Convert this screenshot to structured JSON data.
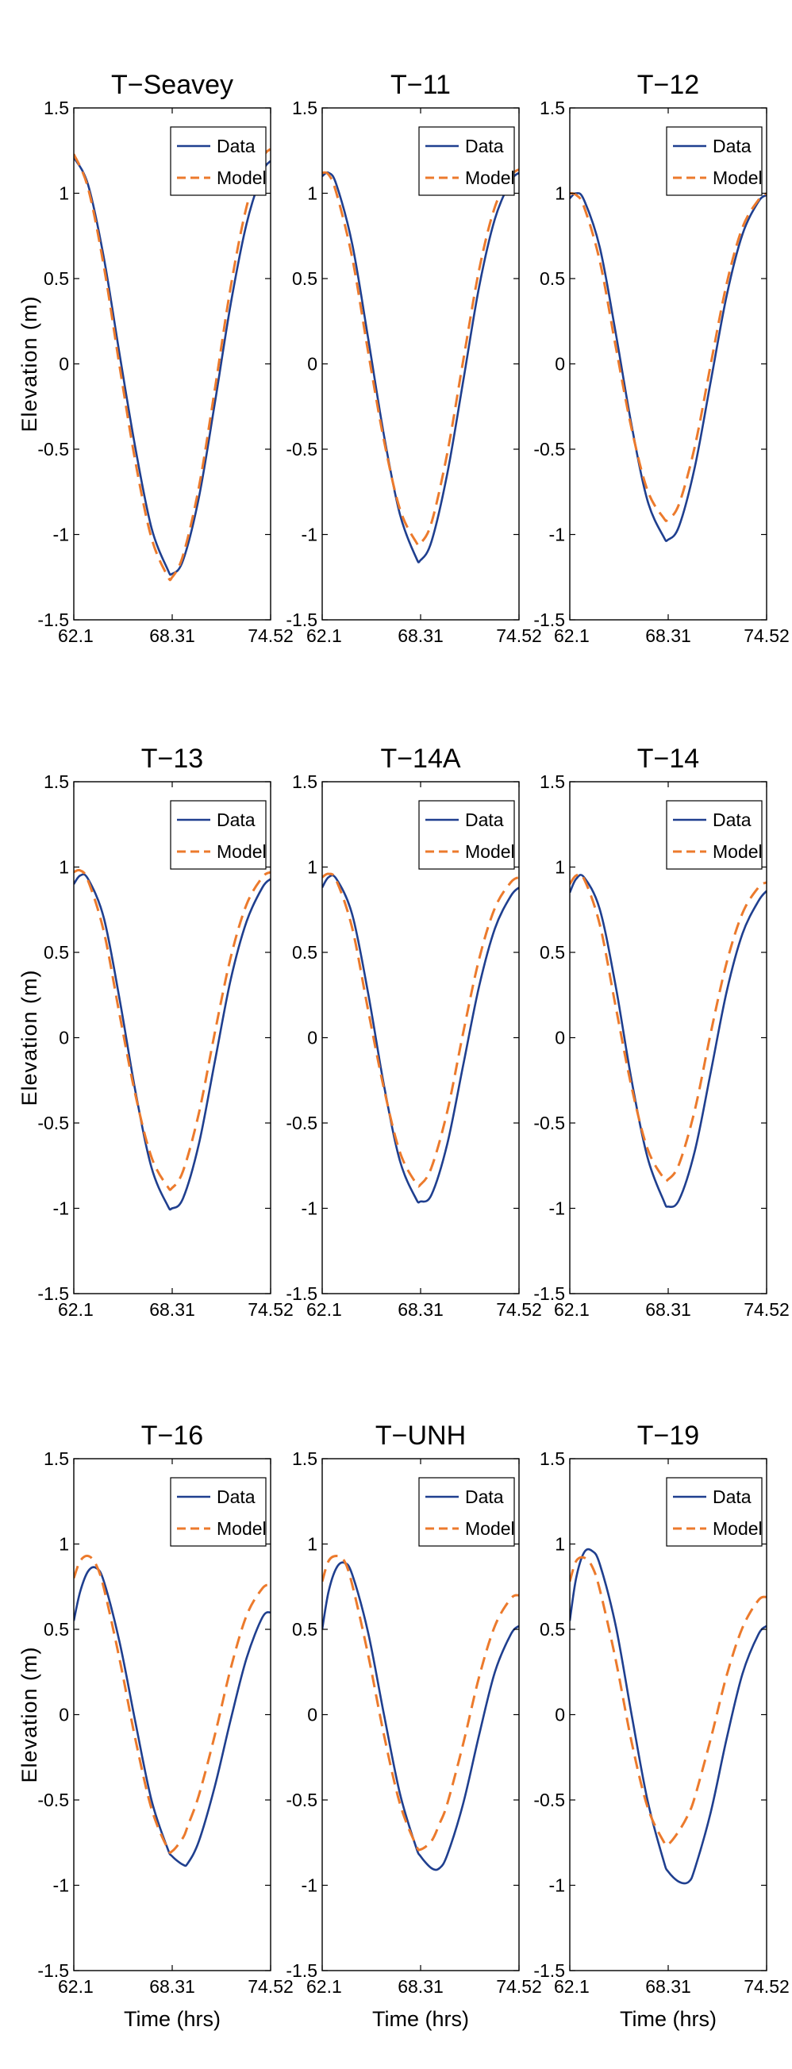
{
  "figure": {
    "ylabel": "Elevation  (m)",
    "xlabel": "Time (hrs)",
    "colors": {
      "data": "#1f3f8f",
      "model": "#ec7a2c",
      "axis": "#000000"
    }
  },
  "chart_data": [
    {
      "type": "line",
      "title": "T−Seavey",
      "xlim": [
        62.1,
        74.52
      ],
      "ylim": [
        -1.5,
        1.5
      ],
      "xticks": [
        "62.1",
        "68.31",
        "74.52"
      ],
      "yticks": [
        "-1.5",
        "-1",
        "-0.5",
        "0",
        "0.5",
        "1",
        "1.5"
      ],
      "legend_position": "top-right",
      "x": [
        62.1,
        63.0,
        64.0,
        65.0,
        66.0,
        67.0,
        68.0,
        68.31,
        69.0,
        70.0,
        71.0,
        72.0,
        73.0,
        74.0,
        74.52
      ],
      "series": [
        {
          "name": "Data",
          "dash": "solid",
          "values": [
            1.21,
            1.05,
            0.62,
            0.05,
            -0.5,
            -0.96,
            -1.2,
            -1.23,
            -1.15,
            -0.78,
            -0.23,
            0.35,
            0.82,
            1.12,
            1.19
          ]
        },
        {
          "name": "Model",
          "dash": "dashed",
          "values": [
            1.23,
            1.03,
            0.57,
            -0.02,
            -0.58,
            -1.02,
            -1.24,
            -1.25,
            -1.12,
            -0.72,
            -0.15,
            0.45,
            0.92,
            1.2,
            1.26
          ]
        }
      ]
    },
    {
      "type": "line",
      "title": "T−11",
      "xlim": [
        62.1,
        74.52
      ],
      "ylim": [
        -1.5,
        1.5
      ],
      "xticks": [
        "62.1",
        "68.31",
        "74.52"
      ],
      "yticks": [
        "-1.5",
        "-1",
        "-0.5",
        "0",
        "0.5",
        "1",
        "1.5"
      ],
      "legend_position": "top-right",
      "x": [
        62.1,
        62.5,
        63.0,
        64.0,
        65.0,
        66.0,
        67.0,
        68.0,
        68.31,
        69.0,
        70.0,
        71.0,
        72.0,
        73.0,
        74.0,
        74.52
      ],
      "series": [
        {
          "name": "Data",
          "dash": "solid",
          "values": [
            1.1,
            1.12,
            1.05,
            0.7,
            0.15,
            -0.42,
            -0.88,
            -1.13,
            -1.15,
            -1.04,
            -0.64,
            -0.1,
            0.45,
            0.85,
            1.07,
            1.12
          ]
        },
        {
          "name": "Model",
          "dash": "dashed",
          "values": [
            1.12,
            1.11,
            1.0,
            0.62,
            0.07,
            -0.45,
            -0.85,
            -1.04,
            -1.05,
            -0.93,
            -0.52,
            0.02,
            0.55,
            0.92,
            1.1,
            1.14
          ]
        }
      ]
    },
    {
      "type": "line",
      "title": "T−12",
      "xlim": [
        62.1,
        74.52
      ],
      "ylim": [
        -1.5,
        1.5
      ],
      "xticks": [
        "62.1",
        "68.31",
        "74.52"
      ],
      "yticks": [
        "-1.5",
        "-1",
        "-0.5",
        "0",
        "0.5",
        "1",
        "1.5"
      ],
      "legend_position": "top-right",
      "x": [
        62.1,
        62.5,
        63.0,
        64.0,
        65.0,
        66.0,
        67.0,
        68.0,
        68.31,
        69.0,
        70.0,
        71.0,
        72.0,
        73.0,
        74.0,
        74.52
      ],
      "series": [
        {
          "name": "Data",
          "dash": "solid",
          "values": [
            0.97,
            1.0,
            0.96,
            0.68,
            0.18,
            -0.36,
            -0.8,
            -1.01,
            -1.03,
            -0.95,
            -0.6,
            -0.1,
            0.4,
            0.76,
            0.95,
            0.99
          ]
        },
        {
          "name": "Model",
          "dash": "dashed",
          "values": [
            1.0,
            0.99,
            0.92,
            0.6,
            0.1,
            -0.38,
            -0.74,
            -0.9,
            -0.91,
            -0.82,
            -0.48,
            0.0,
            0.47,
            0.8,
            0.96,
            1.0
          ]
        }
      ]
    },
    {
      "type": "line",
      "title": "T−13",
      "xlim": [
        62.1,
        74.52
      ],
      "ylim": [
        -1.5,
        1.5
      ],
      "xticks": [
        "62.1",
        "68.31",
        "74.52"
      ],
      "yticks": [
        "-1.5",
        "-1",
        "-0.5",
        "0",
        "0.5",
        "1",
        "1.5"
      ],
      "legend_position": "top-right",
      "x": [
        62.1,
        62.5,
        63.0,
        64.0,
        65.0,
        66.0,
        67.0,
        68.0,
        68.31,
        69.0,
        70.0,
        71.0,
        72.0,
        73.0,
        74.0,
        74.52
      ],
      "series": [
        {
          "name": "Data",
          "dash": "solid",
          "values": [
            0.9,
            0.95,
            0.93,
            0.7,
            0.22,
            -0.32,
            -0.76,
            -0.98,
            -1.0,
            -0.94,
            -0.62,
            -0.14,
            0.34,
            0.68,
            0.88,
            0.93
          ]
        },
        {
          "name": "Model",
          "dash": "dashed",
          "values": [
            0.97,
            0.98,
            0.92,
            0.62,
            0.13,
            -0.34,
            -0.7,
            -0.87,
            -0.88,
            -0.78,
            -0.44,
            0.03,
            0.47,
            0.78,
            0.94,
            0.97
          ]
        }
      ]
    },
    {
      "type": "line",
      "title": "T−14A",
      "xlim": [
        62.1,
        74.52
      ],
      "ylim": [
        -1.5,
        1.5
      ],
      "xticks": [
        "62.1",
        "68.31",
        "74.52"
      ],
      "yticks": [
        "-1.5",
        "-1",
        "-0.5",
        "0",
        "0.5",
        "1",
        "1.5"
      ],
      "legend_position": "top-right",
      "x": [
        62.1,
        62.5,
        63.0,
        64.0,
        65.0,
        66.0,
        67.0,
        68.0,
        68.31,
        69.0,
        70.0,
        71.0,
        72.0,
        73.0,
        74.0,
        74.52
      ],
      "series": [
        {
          "name": "Data",
          "dash": "solid",
          "values": [
            0.88,
            0.94,
            0.93,
            0.72,
            0.26,
            -0.28,
            -0.72,
            -0.94,
            -0.96,
            -0.92,
            -0.62,
            -0.16,
            0.3,
            0.64,
            0.83,
            0.88
          ]
        },
        {
          "name": "Model",
          "dash": "dashed",
          "values": [
            0.94,
            0.96,
            0.92,
            0.64,
            0.16,
            -0.3,
            -0.67,
            -0.85,
            -0.86,
            -0.76,
            -0.43,
            0.03,
            0.46,
            0.76,
            0.91,
            0.94
          ]
        }
      ]
    },
    {
      "type": "line",
      "title": "T−14",
      "xlim": [
        62.1,
        74.52
      ],
      "ylim": [
        -1.5,
        1.5
      ],
      "xticks": [
        "62.1",
        "68.31",
        "74.52"
      ],
      "yticks": [
        "-1.5",
        "-1",
        "-0.5",
        "0",
        "0.5",
        "1",
        "1.5"
      ],
      "legend_position": "top-right",
      "x": [
        62.1,
        62.5,
        63.0,
        64.0,
        65.0,
        66.0,
        67.0,
        68.0,
        68.31,
        69.0,
        70.0,
        71.0,
        72.0,
        73.0,
        74.0,
        74.52
      ],
      "series": [
        {
          "name": "Data",
          "dash": "solid",
          "values": [
            0.85,
            0.93,
            0.94,
            0.75,
            0.3,
            -0.25,
            -0.7,
            -0.95,
            -0.99,
            -0.95,
            -0.66,
            -0.2,
            0.27,
            0.61,
            0.8,
            0.86
          ]
        },
        {
          "name": "Model",
          "dash": "dashed",
          "values": [
            0.9,
            0.95,
            0.93,
            0.66,
            0.18,
            -0.29,
            -0.65,
            -0.82,
            -0.83,
            -0.74,
            -0.42,
            0.03,
            0.44,
            0.73,
            0.88,
            0.91
          ]
        }
      ]
    },
    {
      "type": "line",
      "title": "T−16",
      "xlim": [
        62.1,
        74.52
      ],
      "ylim": [
        -1.5,
        1.5
      ],
      "xticks": [
        "62.1",
        "68.31",
        "74.52"
      ],
      "yticks": [
        "-1.5",
        "-1",
        "-0.5",
        "0",
        "0.5",
        "1",
        "1.5"
      ],
      "legend_position": "top-right",
      "x": [
        62.1,
        62.5,
        63.0,
        63.5,
        64.0,
        65.0,
        66.0,
        67.0,
        68.0,
        68.31,
        69.0,
        69.3,
        70.0,
        71.0,
        72.0,
        73.0,
        74.0,
        74.52
      ],
      "series": [
        {
          "name": "Data",
          "dash": "solid",
          "values": [
            0.55,
            0.72,
            0.84,
            0.86,
            0.78,
            0.42,
            -0.05,
            -0.5,
            -0.78,
            -0.83,
            -0.88,
            -0.87,
            -0.74,
            -0.42,
            -0.03,
            0.33,
            0.57,
            0.6
          ]
        },
        {
          "name": "Model",
          "dash": "dashed",
          "values": [
            0.8,
            0.9,
            0.93,
            0.88,
            0.74,
            0.32,
            -0.15,
            -0.55,
            -0.78,
            -0.8,
            -0.72,
            -0.65,
            -0.47,
            -0.12,
            0.27,
            0.58,
            0.74,
            0.76
          ]
        }
      ]
    },
    {
      "type": "line",
      "title": "T−UNH",
      "xlim": [
        62.1,
        74.52
      ],
      "ylim": [
        -1.5,
        1.5
      ],
      "xticks": [
        "62.1",
        "68.31",
        "74.52"
      ],
      "yticks": [
        "-1.5",
        "-1",
        "-0.5",
        "0",
        "0.5",
        "1",
        "1.5"
      ],
      "legend_position": "top-right",
      "x": [
        62.1,
        62.5,
        63.0,
        63.5,
        64.0,
        65.0,
        66.0,
        67.0,
        68.0,
        68.31,
        69.0,
        69.5,
        70.0,
        71.0,
        72.0,
        73.0,
        74.0,
        74.52
      ],
      "series": [
        {
          "name": "Data",
          "dash": "solid",
          "values": [
            0.5,
            0.72,
            0.86,
            0.89,
            0.82,
            0.48,
            0.0,
            -0.46,
            -0.77,
            -0.83,
            -0.9,
            -0.9,
            -0.82,
            -0.52,
            -0.12,
            0.25,
            0.47,
            0.52
          ]
        },
        {
          "name": "Model",
          "dash": "dashed",
          "values": [
            0.78,
            0.9,
            0.93,
            0.9,
            0.76,
            0.35,
            -0.12,
            -0.52,
            -0.76,
            -0.79,
            -0.74,
            -0.64,
            -0.52,
            -0.17,
            0.22,
            0.52,
            0.68,
            0.7
          ]
        }
      ]
    },
    {
      "type": "line",
      "title": "T−19",
      "xlim": [
        62.1,
        74.52
      ],
      "ylim": [
        -1.5,
        1.5
      ],
      "xticks": [
        "62.1",
        "68.31",
        "74.52"
      ],
      "yticks": [
        "-1.5",
        "-1",
        "-0.5",
        "0",
        "0.5",
        "1",
        "1.5"
      ],
      "legend_position": "top-right",
      "x": [
        62.1,
        62.5,
        63.0,
        63.5,
        64.0,
        65.0,
        66.0,
        67.0,
        68.0,
        68.31,
        69.0,
        69.6,
        70.0,
        71.0,
        72.0,
        73.0,
        74.0,
        74.52
      ],
      "series": [
        {
          "name": "Data",
          "dash": "solid",
          "values": [
            0.55,
            0.8,
            0.95,
            0.96,
            0.88,
            0.52,
            0.0,
            -0.5,
            -0.85,
            -0.92,
            -0.98,
            -0.98,
            -0.9,
            -0.57,
            -0.14,
            0.24,
            0.47,
            0.52
          ]
        },
        {
          "name": "Model",
          "dash": "dashed",
          "values": [
            0.78,
            0.9,
            0.92,
            0.87,
            0.73,
            0.32,
            -0.16,
            -0.54,
            -0.74,
            -0.76,
            -0.68,
            -0.58,
            -0.48,
            -0.14,
            0.23,
            0.51,
            0.67,
            0.69
          ]
        }
      ]
    }
  ]
}
